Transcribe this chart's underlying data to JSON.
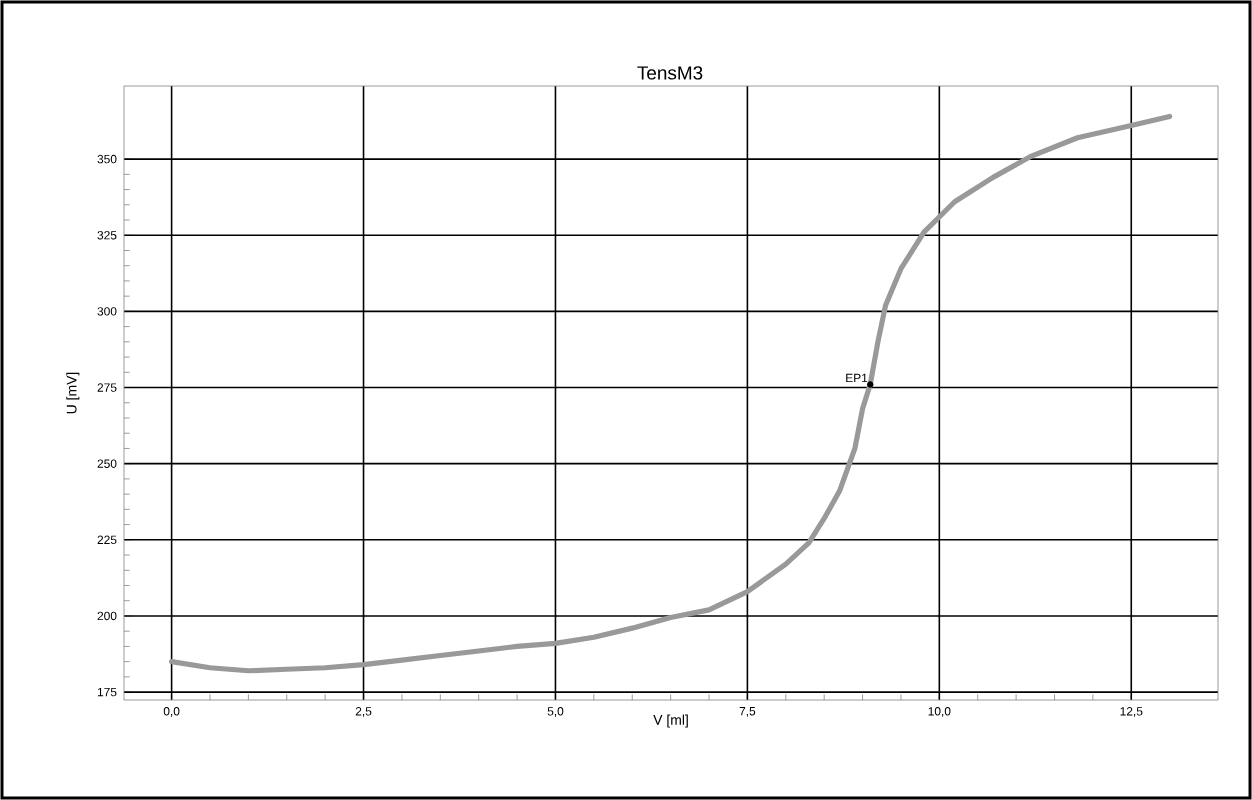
{
  "chart_data": {
    "type": "line",
    "title": "TensM3",
    "xlabel": "V [ml]",
    "ylabel": "U [mV]",
    "x": [
      0,
      0.5,
      1,
      1.5,
      2,
      2.5,
      3,
      3.5,
      4,
      4.5,
      5,
      5.5,
      6,
      6.5,
      7,
      7.5,
      8,
      8.3,
      8.5,
      8.7,
      8.9,
      9.0,
      9.1,
      9.2,
      9.3,
      9.5,
      9.8,
      10.2,
      10.7,
      11.2,
      11.8,
      12.5,
      13
    ],
    "series": [
      {
        "color": "#999999",
        "values": [
          185,
          183,
          182,
          182.5,
          183,
          184,
          185.5,
          187,
          188.5,
          190,
          191,
          193,
          196,
          199.5,
          202,
          208,
          217,
          224,
          232,
          241,
          255,
          268,
          276,
          290,
          302,
          314,
          326,
          336,
          344,
          351,
          357,
          361,
          364
        ]
      }
    ],
    "xlim": [
      -0.62,
      13.63
    ],
    "ylim": [
      172.4,
      374
    ],
    "xticks": [
      {
        "value": 0,
        "label": "0,0"
      },
      {
        "value": 2.5,
        "label": "2,5"
      },
      {
        "value": 5,
        "label": "5,0"
      },
      {
        "value": 7.5,
        "label": "7,5"
      },
      {
        "value": 10,
        "label": "10,0"
      },
      {
        "value": 12.5,
        "label": "12,5"
      }
    ],
    "yticks": [
      175,
      200,
      225,
      250,
      275,
      300,
      325,
      350
    ],
    "grid": true,
    "marker": "none",
    "line_style": "solid",
    "annotations": [
      {
        "text": "EP1",
        "x": 9.1,
        "y": 276
      }
    ]
  }
}
